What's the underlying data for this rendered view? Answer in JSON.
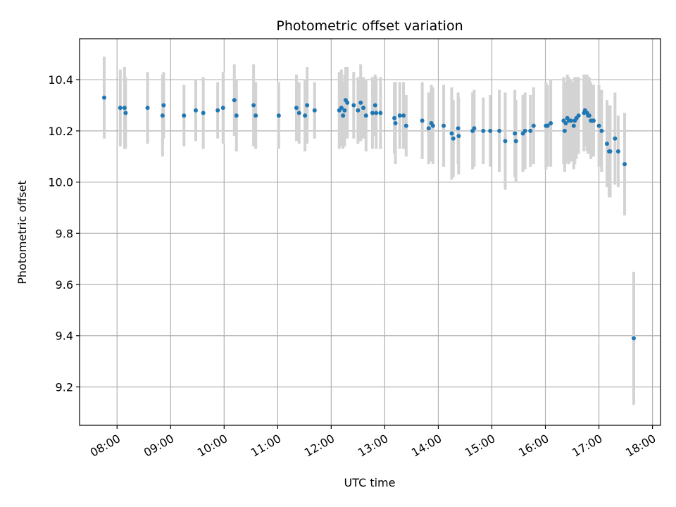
{
  "chart_data": {
    "type": "scatter",
    "title": "Photometric offset variation",
    "xlabel": "UTC time",
    "ylabel": "Photometric offset",
    "x_tick_labels": [
      "08:00",
      "09:00",
      "10:00",
      "11:00",
      "12:00",
      "13:00",
      "14:00",
      "15:00",
      "16:00",
      "17:00",
      "18:00"
    ],
    "x_tick_hours": [
      8,
      9,
      10,
      11,
      12,
      13,
      14,
      15,
      16,
      17,
      18
    ],
    "xlim_hours": [
      7.3,
      18.15
    ],
    "y_tick_labels": [
      "9.2",
      "9.4",
      "9.6",
      "9.8",
      "10.0",
      "10.2",
      "10.4"
    ],
    "y_ticks": [
      9.2,
      9.4,
      9.6,
      9.8,
      10.0,
      10.2,
      10.4
    ],
    "ylim": [
      9.05,
      10.56
    ],
    "grid": true,
    "colors": {
      "point": "#1f77b4",
      "errorbar": "#d3d3d3",
      "grid": "#b0b0b0",
      "axis": "#000000"
    },
    "series": [
      {
        "name": "offset",
        "x_hours": [
          7.76,
          8.06,
          8.14,
          8.16,
          8.57,
          8.85,
          8.87,
          9.25,
          9.47,
          9.61,
          9.88,
          9.98,
          10.19,
          10.23,
          10.55,
          10.59,
          11.02,
          11.35,
          11.4,
          11.51,
          11.55,
          11.69,
          12.15,
          12.19,
          12.22,
          12.25,
          12.27,
          12.3,
          12.42,
          12.5,
          12.55,
          12.6,
          12.65,
          12.77,
          12.82,
          12.84,
          12.92,
          13.18,
          13.2,
          13.28,
          13.35,
          13.4,
          13.7,
          13.82,
          13.87,
          13.9,
          14.1,
          14.25,
          14.28,
          14.37,
          14.38,
          14.64,
          14.67,
          14.84,
          14.97,
          15.14,
          15.25,
          15.43,
          15.45,
          15.58,
          15.62,
          15.72,
          15.78,
          16.01,
          16.04,
          16.1,
          16.34,
          16.36,
          16.38,
          16.41,
          16.44,
          16.48,
          16.53,
          16.55,
          16.58,
          16.62,
          16.72,
          16.74,
          16.78,
          16.8,
          16.82,
          16.85,
          16.88,
          16.9,
          17.0,
          17.05,
          17.15,
          17.19,
          17.21,
          17.3,
          17.36,
          17.48,
          17.65
        ],
        "y": [
          10.33,
          10.29,
          10.29,
          10.27,
          10.29,
          10.26,
          10.3,
          10.26,
          10.28,
          10.27,
          10.28,
          10.29,
          10.32,
          10.26,
          10.3,
          10.26,
          10.26,
          10.29,
          10.27,
          10.26,
          10.3,
          10.28,
          10.28,
          10.29,
          10.26,
          10.28,
          10.32,
          10.31,
          10.3,
          10.28,
          10.31,
          10.29,
          10.26,
          10.27,
          10.3,
          10.27,
          10.27,
          10.25,
          10.23,
          10.26,
          10.26,
          10.22,
          10.24,
          10.21,
          10.23,
          10.22,
          10.22,
          10.19,
          10.17,
          10.21,
          10.18,
          10.2,
          10.21,
          10.2,
          10.2,
          10.2,
          10.16,
          10.19,
          10.16,
          10.19,
          10.2,
          10.2,
          10.22,
          10.22,
          10.22,
          10.23,
          10.24,
          10.2,
          10.23,
          10.25,
          10.24,
          10.24,
          10.22,
          10.24,
          10.25,
          10.26,
          10.27,
          10.28,
          10.27,
          10.26,
          10.26,
          10.24,
          10.24,
          10.24,
          10.22,
          10.2,
          10.15,
          10.12,
          10.12,
          10.17,
          10.12,
          10.07,
          9.39
        ],
        "yerr": [
          0.16,
          0.15,
          0.16,
          0.14,
          0.14,
          0.16,
          0.13,
          0.12,
          0.12,
          0.14,
          0.11,
          0.14,
          0.14,
          0.14,
          0.16,
          0.13,
          0.13,
          0.13,
          0.12,
          0.14,
          0.15,
          0.11,
          0.15,
          0.15,
          0.13,
          0.14,
          0.13,
          0.14,
          0.13,
          0.13,
          0.15,
          0.12,
          0.14,
          0.14,
          0.12,
          0.14,
          0.14,
          0.14,
          0.16,
          0.13,
          0.13,
          0.12,
          0.15,
          0.14,
          0.15,
          0.15,
          0.16,
          0.18,
          0.15,
          0.14,
          0.15,
          0.15,
          0.15,
          0.13,
          0.14,
          0.16,
          0.19,
          0.17,
          0.16,
          0.15,
          0.15,
          0.14,
          0.15,
          0.17,
          0.16,
          0.17,
          0.17,
          0.16,
          0.16,
          0.17,
          0.17,
          0.16,
          0.17,
          0.17,
          0.16,
          0.15,
          0.15,
          0.14,
          0.15,
          0.15,
          0.15,
          0.15,
          0.14,
          0.14,
          0.16,
          0.16,
          0.17,
          0.18,
          0.18,
          0.18,
          0.14,
          0.2,
          0.26
        ]
      }
    ]
  }
}
